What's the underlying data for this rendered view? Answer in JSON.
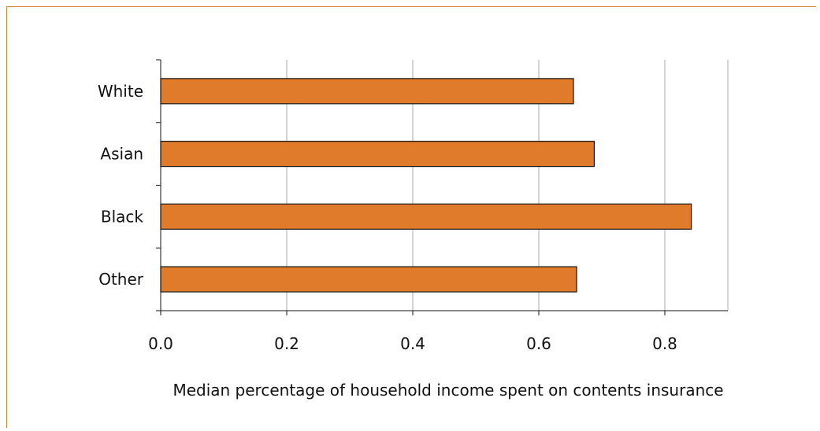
{
  "chart_data": {
    "type": "bar",
    "orientation": "horizontal",
    "categories": [
      "White",
      "Asian",
      "Black",
      "Other"
    ],
    "values": [
      0.655,
      0.688,
      0.842,
      0.66
    ],
    "series": [
      {
        "values": [
          0.655,
          0.688,
          0.842,
          0.66
        ]
      }
    ],
    "xlim": [
      0,
      0.9
    ],
    "xticks": [
      "0.0",
      "0.2",
      "0.4",
      "0.6",
      "0.8"
    ],
    "xtick_values": [
      0,
      0.2,
      0.4,
      0.6,
      0.8
    ],
    "xlabel": "Median percentage of household income spent on contents insurance",
    "ylabel": "",
    "title": "",
    "grid": "vertical",
    "bar_color": "#e07b2b",
    "frame_color": "#d9822b"
  }
}
